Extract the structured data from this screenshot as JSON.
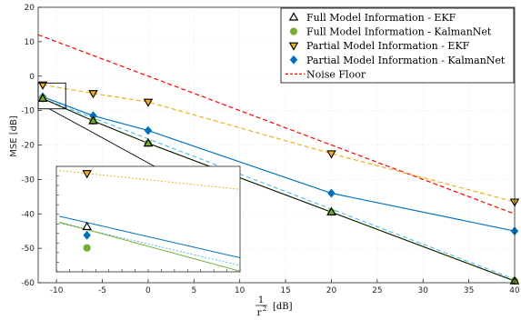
{
  "chart_data": {
    "type": "line",
    "title": "",
    "xlabel_numerator": "1",
    "xlabel_denominator": "r",
    "xlabel_exponent": "2",
    "xlabel_unit": "[dB]",
    "ylabel": "MSE [dB]",
    "xlim": [
      -12,
      40
    ],
    "ylim": [
      -60,
      20
    ],
    "xticks": [
      -10,
      -5,
      0,
      5,
      10,
      15,
      20,
      25,
      30,
      35,
      40
    ],
    "yticks": [
      -60,
      -50,
      -40,
      -30,
      -20,
      -10,
      0,
      10,
      20
    ],
    "grid": true,
    "legend_position": "top-right",
    "series": [
      {
        "name": "Full Model Information - EKF",
        "color": "#000000",
        "style": "solid",
        "marker": "triangle-up",
        "x": [
          -11.5,
          -6,
          0,
          20,
          40
        ],
        "y": [
          -6.5,
          -13,
          -19.5,
          -39.5,
          -59.5
        ]
      },
      {
        "name": "Full Model Information - KalmanNet",
        "color": "#77ac30",
        "style": "solid",
        "marker": "circle",
        "x": [
          -11.5,
          -6,
          0,
          20,
          40
        ],
        "y": [
          -6.5,
          -13,
          -19.5,
          -39.5,
          -59.5
        ]
      },
      {
        "name": "Partial Model Information - EKF",
        "color": "#edb120",
        "style": "dashed",
        "marker": "triangle-down",
        "x": [
          -11.5,
          -6,
          0,
          20,
          40
        ],
        "y": [
          -2.5,
          -5,
          -7.5,
          -22.5,
          -36.5
        ]
      },
      {
        "name": "Partial Model Information - KalmanNet",
        "color": "#0072bd",
        "style": "solid",
        "marker": "diamond",
        "x": [
          -11.5,
          -6,
          0,
          20,
          40
        ],
        "y": [
          -6,
          -11.5,
          -15.8,
          -34,
          -45
        ]
      },
      {
        "name": "Noise Floor",
        "color": "#ff0000",
        "style": "dashed",
        "marker": "none",
        "x": [
          -12,
          40
        ],
        "y": [
          12,
          -40
        ]
      }
    ],
    "extra_lines": [
      {
        "color": "#4dbeee",
        "style": "dashed",
        "x": [
          -11.5,
          40
        ],
        "y": [
          -6.5,
          -59
        ]
      }
    ],
    "inset": {
      "xlim": [
        -12,
        -9
      ],
      "ylim": [
        -9.5,
        -2
      ],
      "xtick_count": 15,
      "ytick_count": 12
    }
  }
}
